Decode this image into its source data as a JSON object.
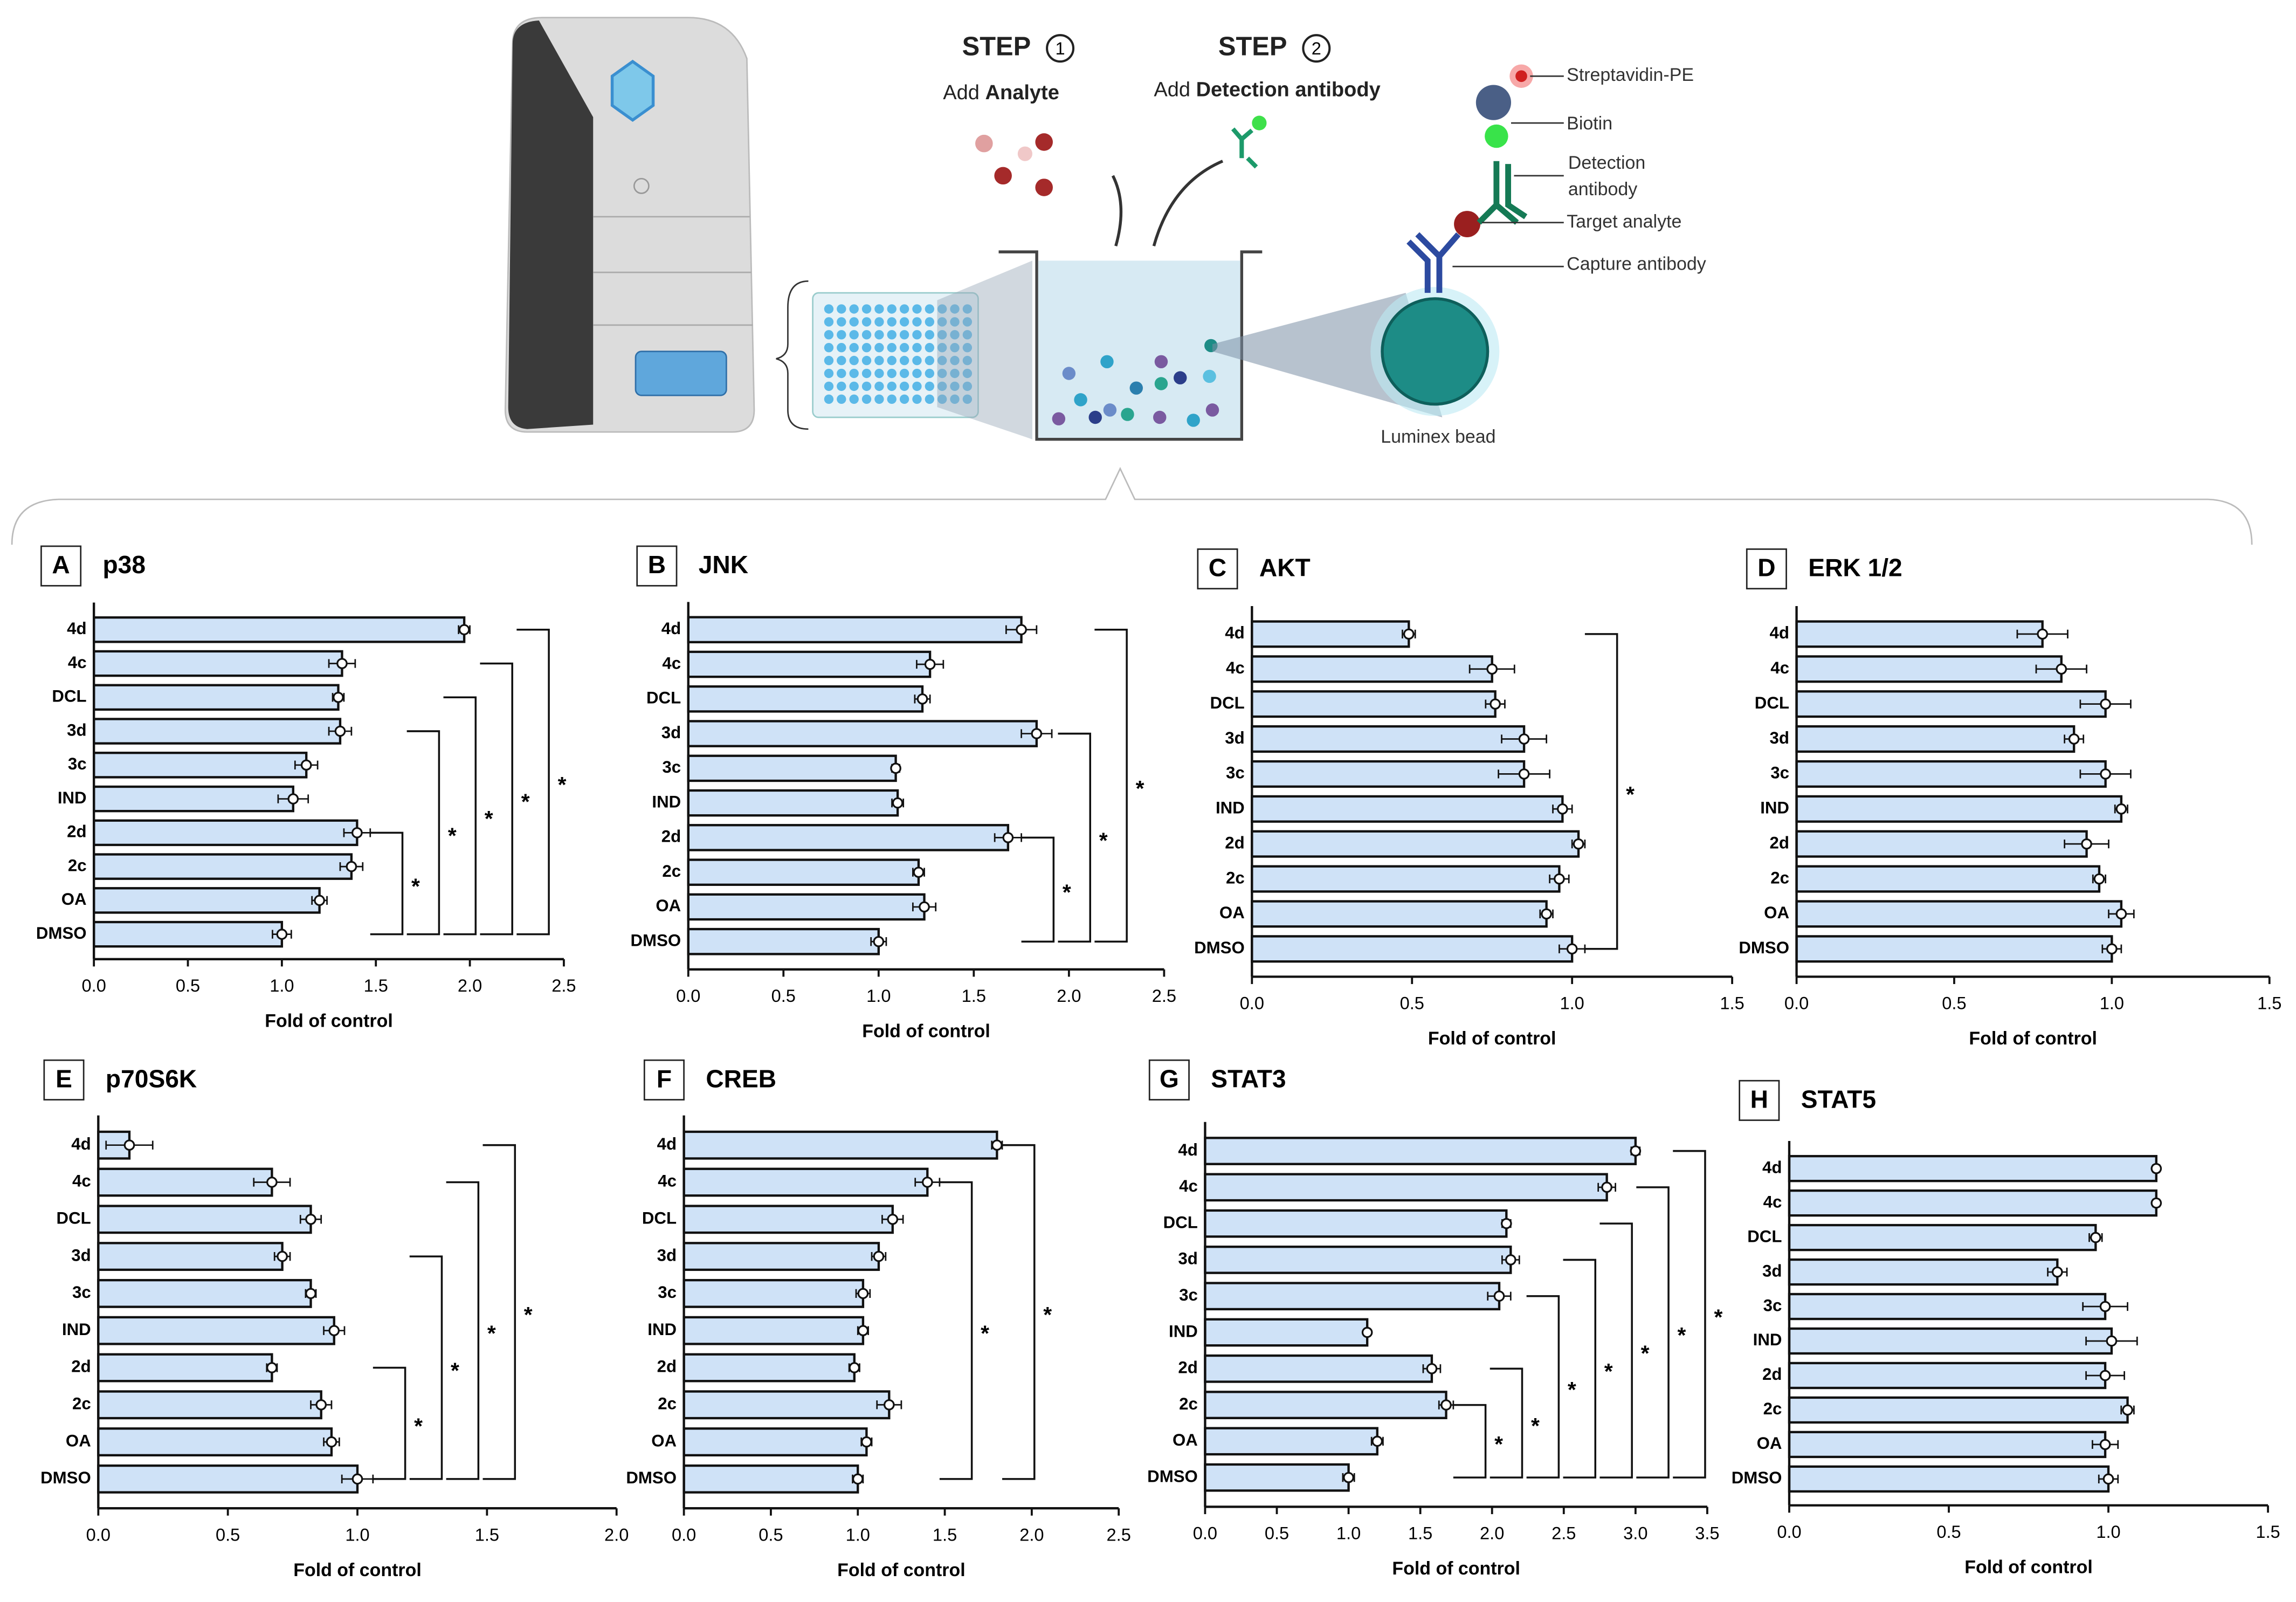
{
  "diagram": {
    "step1": {
      "label": "STEP",
      "number": "1",
      "action": "Add",
      "object": "Analyte"
    },
    "step2": {
      "label": "STEP",
      "number": "2",
      "action": "Add",
      "object": "Detection antibody"
    },
    "labels": {
      "streptavidin": "Streptavidin-PE",
      "biotin": "Biotin",
      "detection": [
        "Detection",
        "antibody"
      ],
      "target": "Target analyte",
      "capture": "Capture antibody",
      "bead": "Luminex bead"
    }
  },
  "chart_data": [
    {
      "type": "hbar",
      "panel": "A",
      "title": "p38",
      "xlabel": "Fold of control",
      "categories": [
        "4d",
        "4c",
        "DCL",
        "3d",
        "3c",
        "IND",
        "2d",
        "2c",
        "OA",
        "DMSO"
      ],
      "values": [
        1.97,
        1.32,
        1.3,
        1.31,
        1.13,
        1.06,
        1.4,
        1.37,
        1.2,
        1.0
      ],
      "errors": [
        0.03,
        0.07,
        0.03,
        0.06,
        0.06,
        0.08,
        0.07,
        0.06,
        0.04,
        0.05
      ],
      "color": "#cfe2f7",
      "xlim": [
        0,
        2.5
      ],
      "xticks": [
        {
          "value": 0,
          "label": "0.0"
        },
        0.5,
        {
          "value": 1,
          "label": "1.0"
        },
        1.5,
        {
          "value": 2,
          "label": "2.0"
        },
        2.5
      ],
      "brackets": [
        {
          "between": [
            "2d",
            "DMSO"
          ],
          "label": "*"
        },
        {
          "between": [
            "3d",
            "DMSO"
          ],
          "label": "*"
        },
        {
          "between": [
            "DCL",
            "DMSO"
          ],
          "label": "*"
        },
        {
          "between": [
            "4c",
            "DMSO"
          ],
          "label": "*"
        },
        {
          "between": [
            "4d",
            "DMSO"
          ],
          "label": "*"
        }
      ]
    },
    {
      "type": "hbar",
      "panel": "B",
      "title": "JNK",
      "xlabel": "Fold of control",
      "categories": [
        "4d",
        "4c",
        "DCL",
        "3d",
        "3c",
        "IND",
        "2d",
        "2c",
        "OA",
        "DMSO"
      ],
      "values": [
        1.75,
        1.27,
        1.23,
        1.83,
        1.09,
        1.1,
        1.68,
        1.21,
        1.24,
        1.0
      ],
      "errors": [
        0.08,
        0.07,
        0.04,
        0.08,
        0.02,
        0.03,
        0.07,
        0.03,
        0.06,
        0.04
      ],
      "color": "#cfe2f7",
      "xlim": [
        0,
        2.5
      ],
      "xticks": [
        {
          "value": 0,
          "label": "0.0"
        },
        0.5,
        {
          "value": 1,
          "label": "1.0"
        },
        1.5,
        {
          "value": 2,
          "label": "2.0"
        },
        2.5
      ],
      "brackets": [
        {
          "between": [
            "2d",
            "DMSO"
          ],
          "label": "*"
        },
        {
          "between": [
            "3d",
            "DMSO"
          ],
          "label": "*"
        },
        {
          "between": [
            "4d",
            "DMSO"
          ],
          "label": "*"
        }
      ]
    },
    {
      "type": "hbar",
      "panel": "C",
      "title": "AKT",
      "xlabel": "Fold of control",
      "categories": [
        "4d",
        "4c",
        "DCL",
        "3d",
        "3c",
        "IND",
        "2d",
        "2c",
        "OA",
        "DMSO"
      ],
      "values": [
        0.49,
        0.75,
        0.76,
        0.85,
        0.85,
        0.97,
        1.02,
        0.96,
        0.92,
        1.0
      ],
      "errors": [
        0.02,
        0.07,
        0.03,
        0.07,
        0.08,
        0.03,
        0.02,
        0.03,
        0.02,
        0.04
      ],
      "color": "#cfe2f7",
      "xlim": [
        0,
        1.5
      ],
      "xticks": [
        {
          "value": 0,
          "label": "0.0"
        },
        0.5,
        {
          "value": 1,
          "label": "1.0"
        },
        1.5
      ],
      "brackets": [
        {
          "between": [
            "4d",
            "DMSO"
          ],
          "label": "*"
        }
      ]
    },
    {
      "type": "hbar",
      "panel": "D",
      "title": "ERK 1/2",
      "xlabel": "Fold of control",
      "categories": [
        "4d",
        "4c",
        "DCL",
        "3d",
        "3c",
        "IND",
        "2d",
        "2c",
        "OA",
        "DMSO"
      ],
      "values": [
        0.78,
        0.84,
        0.98,
        0.88,
        0.98,
        1.03,
        0.92,
        0.96,
        1.03,
        1.0
      ],
      "errors": [
        0.08,
        0.08,
        0.08,
        0.03,
        0.08,
        0.02,
        0.07,
        0.02,
        0.04,
        0.03
      ],
      "color": "#cfe2f7",
      "xlim": [
        0,
        1.5
      ],
      "xticks": [
        {
          "value": 0,
          "label": "0.0"
        },
        0.5,
        {
          "value": 1,
          "label": "1.0"
        },
        1.5
      ],
      "brackets": []
    },
    {
      "type": "hbar",
      "panel": "E",
      "title": "p70S6K",
      "xlabel": "Fold of control",
      "categories": [
        "4d",
        "4c",
        "DCL",
        "3d",
        "3c",
        "IND",
        "2d",
        "2c",
        "OA",
        "DMSO"
      ],
      "values": [
        0.12,
        0.67,
        0.82,
        0.71,
        0.82,
        0.91,
        0.67,
        0.86,
        0.9,
        1.0
      ],
      "errors": [
        0.09,
        0.07,
        0.04,
        0.03,
        0.02,
        0.04,
        0.02,
        0.04,
        0.03,
        0.06
      ],
      "color": "#cfe2f7",
      "xlim": [
        0,
        2
      ],
      "xticks": [
        {
          "value": 0,
          "label": "0.0"
        },
        0.5,
        {
          "value": 1,
          "label": "1.0"
        },
        1.5,
        {
          "value": 2,
          "label": "2.0"
        }
      ],
      "brackets": [
        {
          "between": [
            "2d",
            "DMSO"
          ],
          "label": "*"
        },
        {
          "between": [
            "3d",
            "DMSO"
          ],
          "label": "*"
        },
        {
          "between": [
            "4c",
            "DMSO"
          ],
          "label": "*"
        },
        {
          "between": [
            "4d",
            "DMSO"
          ],
          "label": "*"
        }
      ]
    },
    {
      "type": "hbar",
      "panel": "F",
      "title": "CREB",
      "xlabel": "Fold of control",
      "categories": [
        "4d",
        "4c",
        "DCL",
        "3d",
        "3c",
        "IND",
        "2d",
        "2c",
        "OA",
        "DMSO"
      ],
      "values": [
        1.8,
        1.4,
        1.2,
        1.12,
        1.03,
        1.03,
        0.98,
        1.18,
        1.05,
        1.0
      ],
      "errors": [
        0.03,
        0.07,
        0.06,
        0.04,
        0.04,
        0.03,
        0.03,
        0.07,
        0.03,
        0.03
      ],
      "color": "#cfe2f7",
      "xlim": [
        0,
        2.5
      ],
      "xticks": [
        {
          "value": 0,
          "label": "0.0"
        },
        0.5,
        {
          "value": 1,
          "label": "1.0"
        },
        1.5,
        {
          "value": 2,
          "label": "2.0"
        },
        2.5
      ],
      "brackets": [
        {
          "between": [
            "4c",
            "DMSO"
          ],
          "label": "*"
        },
        {
          "between": [
            "4d",
            "DMSO"
          ],
          "label": "*"
        }
      ]
    },
    {
      "type": "hbar",
      "panel": "G",
      "title": "STAT3",
      "xlabel": "Fold of control",
      "categories": [
        "4d",
        "4c",
        "DCL",
        "3d",
        "3c",
        "IND",
        "2d",
        "2c",
        "OA",
        "DMSO"
      ],
      "values": [
        3.0,
        2.8,
        2.1,
        2.13,
        2.05,
        1.13,
        1.58,
        1.68,
        1.2,
        1.0
      ],
      "errors": [
        0.03,
        0.06,
        0.03,
        0.06,
        0.08,
        0.02,
        0.06,
        0.05,
        0.04,
        0.04
      ],
      "color": "#cfe2f7",
      "xlim": [
        0,
        3.5
      ],
      "xticks": [
        {
          "value": 0,
          "label": "0.0"
        },
        0.5,
        {
          "value": 1,
          "label": "1.0"
        },
        1.5,
        {
          "value": 2,
          "label": "2.0"
        },
        2.5,
        {
          "value": 3,
          "label": "3.0"
        },
        3.5
      ],
      "brackets": [
        {
          "between": [
            "2c",
            "DMSO"
          ],
          "label": "*"
        },
        {
          "between": [
            "2d",
            "DMSO"
          ],
          "label": "*"
        },
        {
          "between": [
            "3c",
            "DMSO"
          ],
          "label": "*"
        },
        {
          "between": [
            "3d",
            "DMSO"
          ],
          "label": "*"
        },
        {
          "between": [
            "DCL",
            "DMSO"
          ],
          "label": "*"
        },
        {
          "between": [
            "4c",
            "DMSO"
          ],
          "label": "*"
        },
        {
          "between": [
            "4d",
            "DMSO"
          ],
          "label": "*"
        }
      ]
    },
    {
      "type": "hbar",
      "panel": "H",
      "title": "STAT5",
      "xlabel": "Fold of control",
      "categories": [
        "4d",
        "4c",
        "DCL",
        "3d",
        "3c",
        "IND",
        "2d",
        "2c",
        "OA",
        "DMSO"
      ],
      "values": [
        1.15,
        1.15,
        0.96,
        0.84,
        0.99,
        1.01,
        0.99,
        1.06,
        0.99,
        1.0
      ],
      "errors": [
        0.01,
        0.01,
        0.02,
        0.03,
        0.07,
        0.08,
        0.06,
        0.02,
        0.04,
        0.03
      ],
      "color": "#cfe2f7",
      "xlim": [
        0,
        1.5
      ],
      "xticks": [
        {
          "value": 0,
          "label": "0.0"
        },
        0.5,
        {
          "value": 1,
          "label": "1.0"
        },
        1.5
      ],
      "brackets": []
    }
  ]
}
